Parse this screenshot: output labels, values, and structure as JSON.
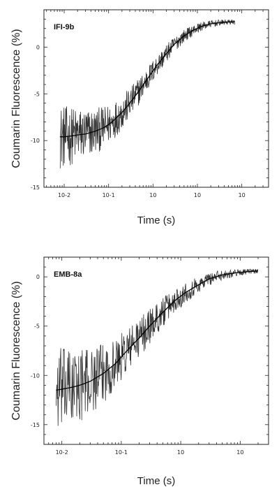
{
  "chart_data": [
    {
      "type": "line",
      "panel_label": "IFI-9b",
      "xlabel": "Time (s)",
      "ylabel": "Coumarin Fluorescence (%)",
      "x_scale": "log",
      "xlim": [
        0.0035,
        400
      ],
      "ylim": [
        -15,
        4
      ],
      "x_ticks": [
        0.01,
        0.1,
        1,
        10,
        100
      ],
      "x_tick_labels": [
        "10⁻²",
        "10⁻¹",
        "10⁰",
        "10¹",
        "10²"
      ],
      "x_tick_labels_display": [
        "10-2",
        "10-1",
        "10",
        "10",
        "10"
      ],
      "y_ticks": [
        -15,
        -10,
        -5,
        0
      ],
      "y_tick_labels": [
        "-15",
        "-10",
        "-5",
        "0"
      ],
      "grid": false,
      "series": [
        {
          "style": "noisy-trace",
          "x": [
            0.008,
            0.01,
            0.015,
            0.02,
            0.03,
            0.05,
            0.08,
            0.12,
            0.2,
            0.3,
            0.5,
            0.8,
            1.2,
            2,
            3,
            5,
            8,
            12,
            20,
            30,
            50,
            70
          ],
          "y": [
            -9.6,
            -9.6,
            -9.5,
            -9.4,
            -9.3,
            -9.0,
            -8.6,
            -8.0,
            -7.0,
            -6.0,
            -4.6,
            -3.2,
            -2.0,
            -0.7,
            0.3,
            1.2,
            1.8,
            2.2,
            2.5,
            2.6,
            2.7,
            2.7
          ]
        },
        {
          "style": "fit",
          "x": [
            0.008,
            0.01,
            0.015,
            0.02,
            0.03,
            0.05,
            0.08,
            0.12,
            0.2,
            0.3,
            0.5,
            0.8,
            1.2,
            2,
            3,
            5,
            8,
            12,
            20,
            30,
            50,
            70
          ],
          "y": [
            -9.6,
            -9.6,
            -9.5,
            -9.4,
            -9.3,
            -9.0,
            -8.6,
            -8.0,
            -7.0,
            -6.0,
            -4.6,
            -3.2,
            -2.0,
            -0.7,
            0.3,
            1.2,
            1.8,
            2.2,
            2.5,
            2.6,
            2.7,
            2.7
          ]
        }
      ]
    },
    {
      "type": "line",
      "panel_label": "EMB-8a",
      "xlabel": "Time (s)",
      "ylabel": "Coumarin Fluorescence (%)",
      "x_scale": "log",
      "xlim": [
        0.005,
        30
      ],
      "ylim": [
        -17,
        2
      ],
      "x_ticks": [
        0.01,
        0.1,
        1,
        10
      ],
      "x_tick_labels": [
        "10⁻²",
        "10⁻¹",
        "10⁰",
        "10¹"
      ],
      "x_tick_labels_display": [
        "10-2",
        "10-1",
        "10",
        "10"
      ],
      "y_ticks": [
        -15,
        -10,
        -5,
        0
      ],
      "y_tick_labels": [
        "-15",
        "-10",
        "-5",
        "0"
      ],
      "grid": false,
      "series": [
        {
          "style": "noisy-trace",
          "x": [
            0.008,
            0.01,
            0.015,
            0.02,
            0.03,
            0.05,
            0.08,
            0.12,
            0.2,
            0.3,
            0.5,
            0.8,
            1.2,
            2,
            3,
            5,
            8,
            12,
            20
          ],
          "y": [
            -11.5,
            -11.4,
            -11.2,
            -11.0,
            -10.6,
            -9.8,
            -8.8,
            -7.6,
            -6.2,
            -5.0,
            -3.6,
            -2.4,
            -1.6,
            -0.8,
            -0.2,
            0.2,
            0.4,
            0.5,
            0.6
          ]
        },
        {
          "style": "fit",
          "x": [
            0.008,
            0.01,
            0.015,
            0.02,
            0.03,
            0.05,
            0.08,
            0.12,
            0.2,
            0.3,
            0.5,
            0.8,
            1.2,
            2,
            3,
            5,
            8,
            12,
            20
          ],
          "y": [
            -11.5,
            -11.4,
            -11.2,
            -11.0,
            -10.6,
            -9.8,
            -8.8,
            -7.6,
            -6.2,
            -5.0,
            -3.6,
            -2.4,
            -1.6,
            -0.8,
            -0.2,
            0.2,
            0.4,
            0.5,
            0.6
          ]
        }
      ]
    }
  ]
}
